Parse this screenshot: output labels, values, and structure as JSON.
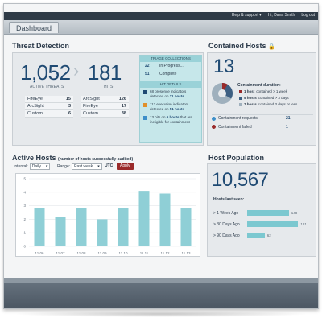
{
  "topnav": {
    "help": "Help & support ▾",
    "user": "Hi, Dana Smith",
    "logout": "Log out"
  },
  "page": {
    "title": "Dashboard"
  },
  "threat": {
    "title": "Threat Detection",
    "active_threats": {
      "value": "1,052",
      "label": "ACTIVE THREATS"
    },
    "hits": {
      "value": "181",
      "label": "HITS"
    },
    "left_table": [
      {
        "name": "FireEye",
        "value": "15"
      },
      {
        "name": "ArcSight",
        "value": "3"
      },
      {
        "name": "Custom",
        "value": "6"
      }
    ],
    "right_table": [
      {
        "name": "ArcSight",
        "value": "126"
      },
      {
        "name": "FireEye",
        "value": "17"
      },
      {
        "name": "Custom",
        "value": "38"
      }
    ],
    "triage": {
      "header": "TRIAGE COLLECTIONS",
      "rows": [
        {
          "n": "22",
          "label": "In Progress..."
        },
        {
          "n": "51",
          "label": "Complete"
        }
      ],
      "hit_header": "HIT DETAILS",
      "hits": [
        {
          "pre": "68 presence indicators detected on ",
          "bold": "11 hosts",
          "color": "#1f4a73"
        },
        {
          "pre": "113 execution indicators detected on ",
          "bold": "51 hosts",
          "color": "#e0902a"
        },
        {
          "pre": "13 hits on ",
          "bold": "6 hosts",
          "post": " that are ineligible for containment",
          "color": "#3d8fc9"
        }
      ]
    }
  },
  "contained": {
    "title": "Contained Hosts",
    "value": "13",
    "duration_title": "Containment duration:",
    "legend": [
      {
        "pre": "1 host",
        "post": " contained > 1 week",
        "color": "#9a2a2a"
      },
      {
        "pre": "5 hosts",
        "post": " contained > 3 days",
        "color": "#3d5f82"
      },
      {
        "pre": "7 hosts",
        "post": " contained 3 days or less",
        "color": "#9fb0bd"
      }
    ],
    "rows": [
      {
        "label": "Containment requests",
        "value": "21",
        "color": "#3d8fc9"
      },
      {
        "label": "Containment failed",
        "value": "1",
        "color": "#9a2a2a"
      }
    ]
  },
  "active": {
    "title": "Active Hosts",
    "subtitle": "(number of hosts successfully audited)",
    "interval_label": "Interval:",
    "interval_value": "Daily",
    "range_label": "Range:",
    "range_value": "Past week",
    "tz": "UTC",
    "apply": "Apply"
  },
  "chart_data": {
    "type": "bar",
    "title": "",
    "categories": [
      "11.06",
      "11.07",
      "11.08",
      "11.09",
      "11.10",
      "11.11",
      "11.12",
      "11.13"
    ],
    "values": [
      2.8,
      2.2,
      2.8,
      2.0,
      2.8,
      4.1,
      3.9,
      2.8
    ],
    "ylim": [
      0,
      5
    ],
    "yticks": [
      0,
      1,
      2,
      3,
      4,
      5
    ],
    "grid": true,
    "bar_color": "#8fcfd6"
  },
  "population": {
    "title": "Host Population",
    "value": "10,567",
    "last_seen": "Hosts last seen:",
    "bars": [
      {
        "label": "> 1 Week Ago",
        "value": 148
      },
      {
        "label": "> 30 Days Ago",
        "value": 181
      },
      {
        "label": "> 90 Days Ago",
        "value": 62
      }
    ]
  },
  "colors": {
    "accent": "#1f4a73",
    "teal": "#8fcfd6",
    "danger": "#9a2a2a"
  }
}
